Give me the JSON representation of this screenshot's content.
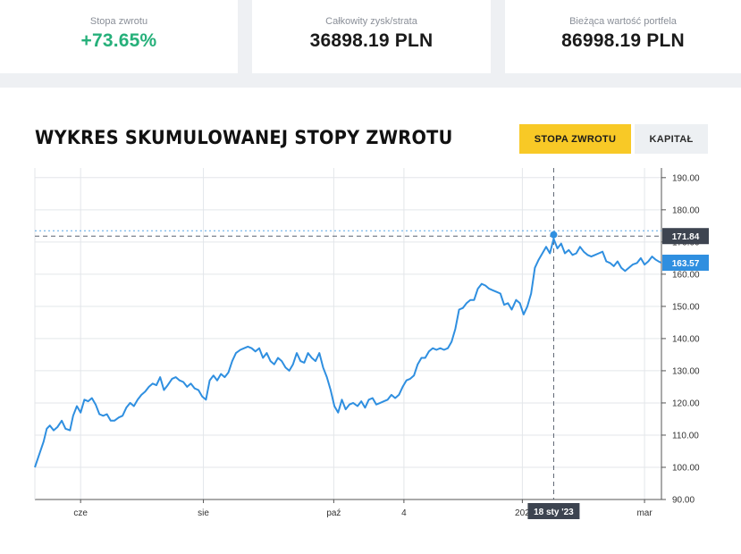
{
  "stats": {
    "return_rate": {
      "label": "Stopa zwrotu",
      "value": "+73.65%"
    },
    "total_profit": {
      "label": "Całkowity zysk/strata",
      "value": "36898.19 PLN"
    },
    "portfolio_value": {
      "label": "Bieżąca wartość portfela",
      "value": "86998.19 PLN"
    }
  },
  "chart_section": {
    "title": "WYKRES SKUMULOWANEJ STOPY ZWROTU",
    "buttons": {
      "return_rate": "STOPA ZWROTU",
      "capital": "KAPITAŁ"
    },
    "active_button": "return_rate"
  },
  "colors": {
    "accent": "#f8c926",
    "positive": "#26b07a",
    "line": "#2f8fe0",
    "crosshair_tag": "#3d4450",
    "last_value_tag": "#2f8fe0"
  },
  "chart_data": {
    "type": "line",
    "title": "WYKRES SKUMULOWANEJ STOPY ZWROTU",
    "xlabel": "",
    "ylabel": "",
    "ylim": [
      90,
      193
    ],
    "y_ticks": [
      90,
      100,
      110,
      120,
      130,
      140,
      150,
      160,
      170,
      180,
      190
    ],
    "y_tick_labels": [
      "90.00",
      "100.00",
      "110.00",
      "120.00",
      "130.00",
      "140.00",
      "150.00",
      "160.00",
      "170.00",
      "180.00",
      "190.00"
    ],
    "x_range": [
      0,
      100
    ],
    "x_ticks": [
      {
        "x": 7.3,
        "label": "cze"
      },
      {
        "x": 26.9,
        "label": "sie"
      },
      {
        "x": 47.7,
        "label": "paź"
      },
      {
        "x": 58.9,
        "label": "4"
      },
      {
        "x": 77.8,
        "label": "202"
      },
      {
        "x": 97.3,
        "label": "mar"
      }
    ],
    "grid": true,
    "legend": "none",
    "crosshair": {
      "x": 82.8,
      "y": 171.84,
      "x_label": "18 sty '23",
      "y_label": "171.84"
    },
    "last_value": {
      "y": 163.57,
      "label": "163.57"
    },
    "series": [
      {
        "values": [
          [
            0,
            100
          ],
          [
            0.7,
            104
          ],
          [
            1.4,
            108
          ],
          [
            1.9,
            112
          ],
          [
            2.4,
            113
          ],
          [
            3.0,
            111.5
          ],
          [
            3.6,
            112.5
          ],
          [
            4.3,
            114.5
          ],
          [
            4.9,
            112
          ],
          [
            5.6,
            111.5
          ],
          [
            6.1,
            116
          ],
          [
            6.7,
            119
          ],
          [
            7.3,
            117
          ],
          [
            7.9,
            121
          ],
          [
            8.5,
            120.5
          ],
          [
            9.1,
            121.5
          ],
          [
            9.7,
            119.5
          ],
          [
            10.3,
            116.5
          ],
          [
            10.9,
            116
          ],
          [
            11.5,
            116.5
          ],
          [
            12.1,
            114.5
          ],
          [
            12.7,
            114.5
          ],
          [
            13.4,
            115.5
          ],
          [
            14.0,
            116
          ],
          [
            14.6,
            118.5
          ],
          [
            15.2,
            120
          ],
          [
            15.8,
            119
          ],
          [
            16.4,
            121
          ],
          [
            17.0,
            122.5
          ],
          [
            17.6,
            123.5
          ],
          [
            18.2,
            125
          ],
          [
            18.8,
            126
          ],
          [
            19.4,
            125.5
          ],
          [
            20.0,
            128
          ],
          [
            20.6,
            124
          ],
          [
            21.2,
            125.5
          ],
          [
            21.9,
            127.5
          ],
          [
            22.5,
            128
          ],
          [
            23.1,
            127
          ],
          [
            23.7,
            126.5
          ],
          [
            24.3,
            125
          ],
          [
            24.9,
            126
          ],
          [
            25.5,
            124.5
          ],
          [
            26.1,
            124
          ],
          [
            26.7,
            122
          ],
          [
            27.3,
            121
          ],
          [
            27.9,
            127
          ],
          [
            28.5,
            128.5
          ],
          [
            29.1,
            127
          ],
          [
            29.7,
            129
          ],
          [
            30.3,
            128
          ],
          [
            30.9,
            129.5
          ],
          [
            31.5,
            133
          ],
          [
            32.1,
            135.5
          ],
          [
            32.8,
            136.5
          ],
          [
            33.4,
            137
          ],
          [
            34.0,
            137.5
          ],
          [
            34.6,
            137
          ],
          [
            35.2,
            136
          ],
          [
            35.8,
            137
          ],
          [
            36.4,
            134
          ],
          [
            37.0,
            135.5
          ],
          [
            37.6,
            133
          ],
          [
            38.2,
            132
          ],
          [
            38.8,
            134
          ],
          [
            39.4,
            133
          ],
          [
            40.0,
            131
          ],
          [
            40.6,
            130
          ],
          [
            41.2,
            132
          ],
          [
            41.8,
            135.5
          ],
          [
            42.4,
            133
          ],
          [
            43.0,
            132.5
          ],
          [
            43.6,
            135.5
          ],
          [
            44.2,
            134
          ],
          [
            44.8,
            133
          ],
          [
            45.4,
            135.5
          ],
          [
            46.0,
            131
          ],
          [
            46.6,
            128
          ],
          [
            47.2,
            124
          ],
          [
            47.8,
            119
          ],
          [
            48.4,
            117
          ],
          [
            49.0,
            121
          ],
          [
            49.6,
            118
          ],
          [
            50.2,
            119.5
          ],
          [
            50.8,
            120
          ],
          [
            51.5,
            119
          ],
          [
            52.1,
            120.5
          ],
          [
            52.7,
            118.5
          ],
          [
            53.3,
            121
          ],
          [
            53.9,
            121.5
          ],
          [
            54.5,
            119.5
          ],
          [
            55.1,
            120
          ],
          [
            55.7,
            120.5
          ],
          [
            56.3,
            121
          ],
          [
            56.9,
            122.5
          ],
          [
            57.5,
            121.5
          ],
          [
            58.1,
            122.5
          ],
          [
            58.7,
            125
          ],
          [
            59.3,
            127
          ],
          [
            59.9,
            127.5
          ],
          [
            60.5,
            128.5
          ],
          [
            61.1,
            132
          ],
          [
            61.7,
            134
          ],
          [
            62.3,
            134
          ],
          [
            62.9,
            136
          ],
          [
            63.5,
            137
          ],
          [
            64.1,
            136.5
          ],
          [
            64.7,
            137
          ],
          [
            65.3,
            136.5
          ],
          [
            65.9,
            137
          ],
          [
            66.5,
            139
          ],
          [
            67.1,
            143
          ],
          [
            67.7,
            149
          ],
          [
            68.3,
            149.5
          ],
          [
            68.9,
            151
          ],
          [
            69.5,
            152
          ],
          [
            70.1,
            152
          ],
          [
            70.7,
            155.5
          ],
          [
            71.3,
            157
          ],
          [
            71.9,
            156.5
          ],
          [
            72.5,
            155.5
          ],
          [
            73.1,
            155
          ],
          [
            73.7,
            154.5
          ],
          [
            74.3,
            154
          ],
          [
            74.9,
            150.5
          ],
          [
            75.5,
            151
          ],
          [
            76.1,
            149
          ],
          [
            76.8,
            152
          ],
          [
            77.4,
            151
          ],
          [
            78.0,
            147.5
          ],
          [
            78.6,
            150
          ],
          [
            79.2,
            154
          ],
          [
            79.8,
            162
          ],
          [
            80.4,
            164.5
          ],
          [
            81.0,
            166.5
          ],
          [
            81.6,
            168.5
          ],
          [
            82.2,
            166.5
          ],
          [
            82.8,
            171
          ],
          [
            83.4,
            168
          ],
          [
            84.0,
            169.5
          ],
          [
            84.6,
            166.5
          ],
          [
            85.2,
            167.5
          ],
          [
            85.8,
            166
          ],
          [
            86.4,
            166.5
          ],
          [
            87.0,
            168.5
          ],
          [
            87.6,
            167
          ],
          [
            88.2,
            166
          ],
          [
            88.8,
            165.5
          ],
          [
            89.4,
            166
          ],
          [
            90.0,
            166.5
          ],
          [
            90.6,
            167
          ],
          [
            91.2,
            164
          ],
          [
            91.8,
            163.5
          ],
          [
            92.4,
            162.5
          ],
          [
            93.0,
            164
          ],
          [
            93.6,
            162
          ],
          [
            94.2,
            161
          ],
          [
            94.8,
            162
          ],
          [
            95.4,
            163
          ],
          [
            96.1,
            163.5
          ],
          [
            96.7,
            165
          ],
          [
            97.3,
            163
          ],
          [
            97.9,
            164
          ],
          [
            98.5,
            165.5
          ],
          [
            99.1,
            164.5
          ],
          [
            99.7,
            163.8
          ],
          [
            100,
            163.57
          ]
        ]
      }
    ]
  }
}
